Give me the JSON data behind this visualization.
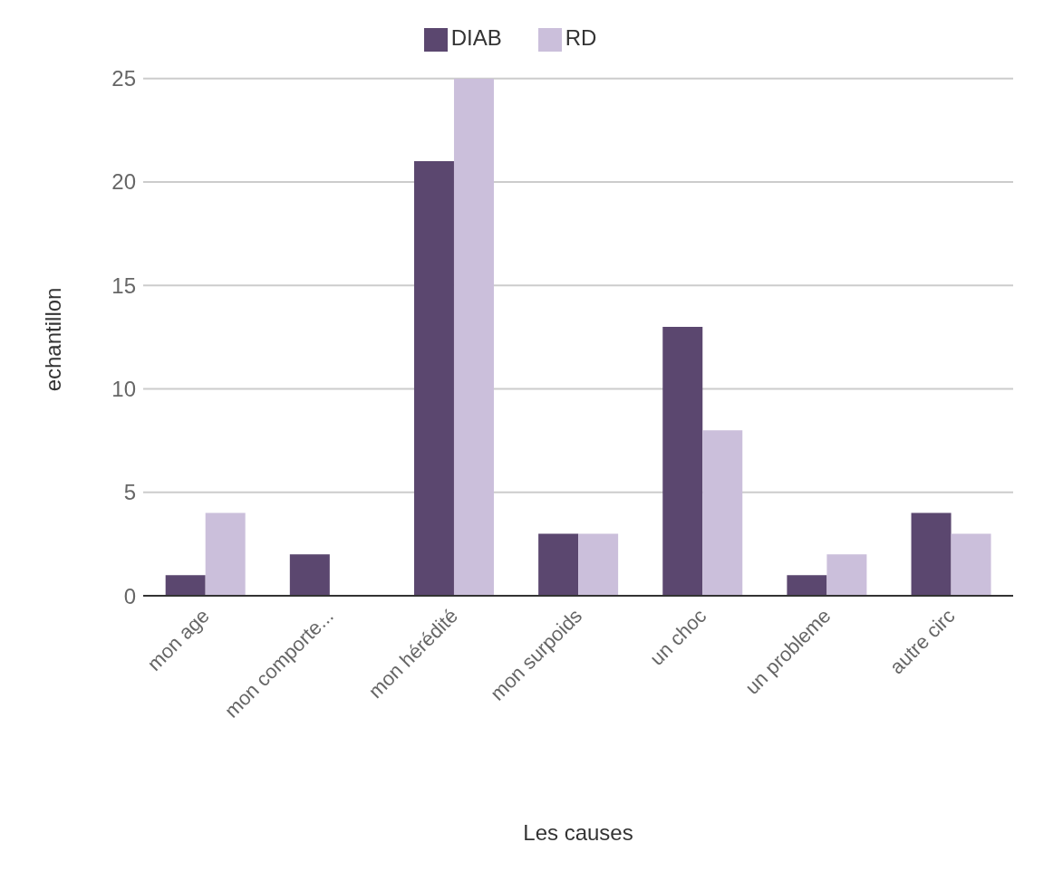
{
  "chart_data": {
    "type": "bar",
    "xlabel": "Les causes",
    "ylabel": "echantillon",
    "categories": [
      "mon age",
      "mon comporte...",
      "mon hérédité",
      "mon surpoids",
      "un choc",
      "un probleme",
      "autre circ"
    ],
    "series": [
      {
        "name": "DIAB",
        "color": "#5b476f",
        "values": [
          1,
          2,
          21,
          3,
          13,
          1,
          4
        ]
      },
      {
        "name": "RD",
        "color": "#cbbfdb",
        "values": [
          4,
          0,
          25,
          3,
          8,
          2,
          3
        ]
      }
    ],
    "ylim": [
      0,
      25
    ],
    "yticks": [
      0,
      5,
      10,
      15,
      20,
      25
    ],
    "grid": "y",
    "legend": "top"
  }
}
